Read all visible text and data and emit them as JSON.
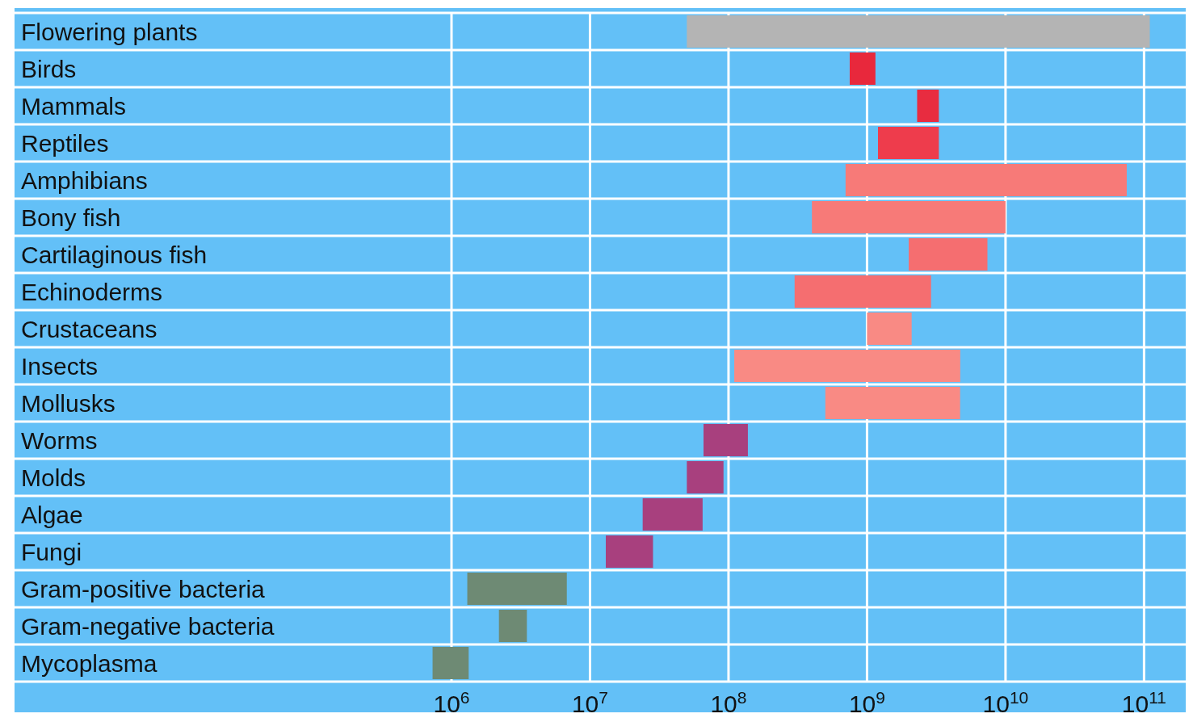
{
  "chart_data": {
    "type": "bar",
    "orientation": "horizontal",
    "log": "x",
    "grid": true,
    "categories": [
      "Flowering plants",
      "Birds",
      "Mammals",
      "Reptiles",
      "Amphibians",
      "Bony fish",
      "Cartilaginous fish",
      "Echinoderms",
      "Crustaceans",
      "Insects",
      "Mollusks",
      "Worms",
      "Molds",
      "Algae",
      "Fungi",
      "Gram-positive bacteria",
      "Gram-negative bacteria",
      "Mycoplasma"
    ],
    "base": [
      50000000,
      750000000,
      2300000000,
      1200000000,
      700000000,
      400000000,
      2000000000,
      300000000,
      1000000000,
      110000000,
      500000000,
      66000000,
      50000000,
      24000000,
      13000000,
      1300000,
      2200000,
      730000
    ],
    "values": [
      110000000000,
      400000000,
      1000000000,
      2100000000,
      74300000000,
      9600000000,
      5400000000,
      2600000000,
      1100000000,
      4600000000,
      4200000000,
      72000000,
      42000000,
      41000000,
      15500000,
      5500000,
      1300000,
      600000
    ],
    "colors": [
      "#b4b4b4",
      "#e8283c",
      "#e82c40",
      "#ee3c4c",
      "#f77a78",
      "#f77a78",
      "#f56e70",
      "#f56e70",
      "#f98a84",
      "#f98a84",
      "#f98a84",
      "#a8407e",
      "#a8407e",
      "#a8407e",
      "#a8407e",
      "#6e8a74",
      "#6e8a74",
      "#6e8a74"
    ],
    "xlim": [
      700,
      200000000000
    ],
    "xticks": [
      {
        "value": 1000000,
        "label": "10$^{6}$"
      },
      {
        "value": 10000000,
        "label": "10$^{7}$"
      },
      {
        "value": 100000000,
        "label": "10$^{8}$"
      },
      {
        "value": 1000000000,
        "label": "10$^{9}$"
      },
      {
        "value": 10000000000,
        "label": "10$^{10}$"
      },
      {
        "value": 100000000000,
        "label": "10$^{11}$"
      }
    ]
  }
}
